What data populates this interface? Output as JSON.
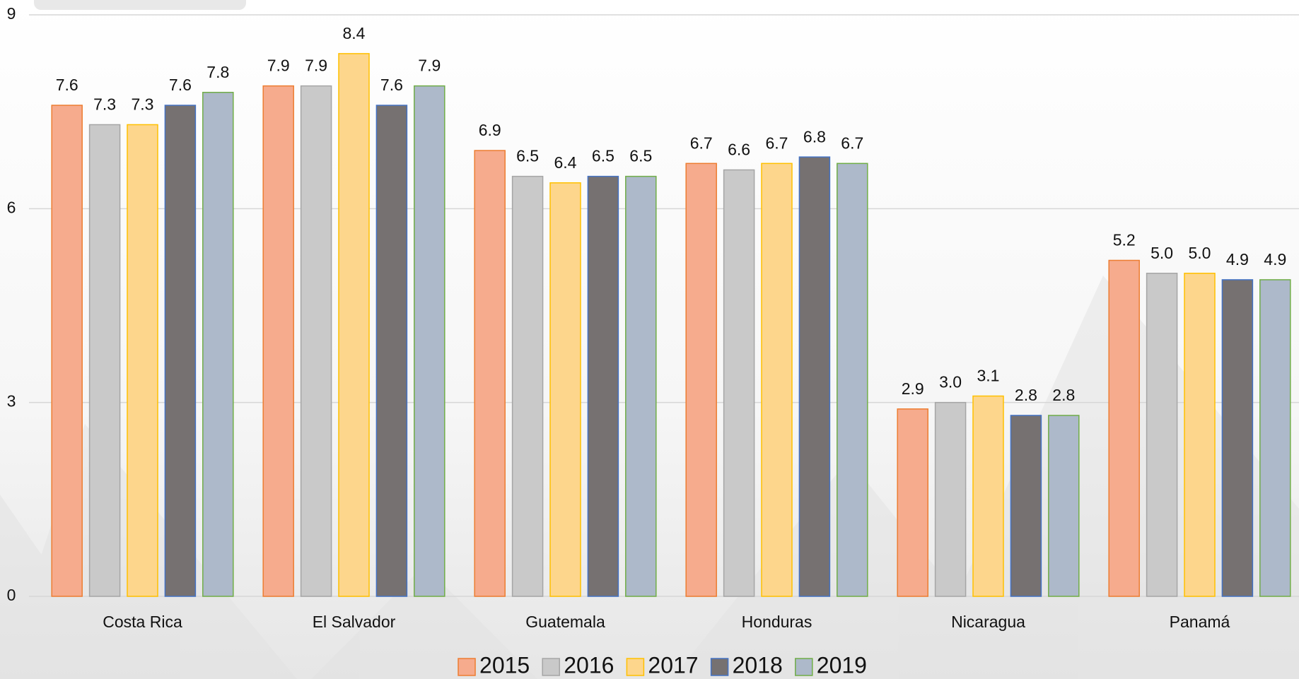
{
  "chart_data": {
    "type": "bar",
    "categories": [
      "Costa Rica",
      "El Salvador",
      "Guatemala",
      "Honduras",
      "Nicaragua",
      "Panamá"
    ],
    "series": [
      {
        "name": "2015",
        "color": "#f6ab8d",
        "edgecolor": "#ed7d31",
        "values": [
          7.6,
          7.9,
          6.9,
          6.7,
          2.9,
          5.2
        ],
        "value_labels": [
          "7.6",
          "7.9",
          "6.9",
          "6.7",
          "2.9",
          "5.2"
        ]
      },
      {
        "name": "2016",
        "color": "#c9c9c9",
        "edgecolor": "#a5a5a5",
        "values": [
          7.3,
          7.9,
          6.5,
          6.6,
          3.0,
          5.0
        ],
        "value_labels": [
          "7.3",
          "7.9",
          "6.5",
          "6.6",
          "3.0",
          "5.0"
        ]
      },
      {
        "name": "2017",
        "color": "#fdd68c",
        "edgecolor": "#ffc000",
        "values": [
          7.3,
          8.4,
          6.4,
          6.7,
          3.1,
          5.0
        ],
        "value_labels": [
          "7.3",
          "8.4",
          "6.4",
          "6.7",
          "3.1",
          "5.0"
        ]
      },
      {
        "name": "2018",
        "color": "#767171",
        "edgecolor": "#4472c4",
        "values": [
          7.6,
          7.6,
          6.5,
          6.8,
          2.8,
          4.9
        ],
        "value_labels": [
          "7.6",
          "7.6",
          "6.5",
          "6.8",
          "2.8",
          "4.9"
        ]
      },
      {
        "name": "2019",
        "color": "#adb9ca",
        "edgecolor": "#70ad47",
        "values": [
          7.8,
          7.9,
          6.5,
          6.7,
          2.8,
          4.9
        ],
        "value_labels": [
          "7.8",
          "7.9",
          "6.5",
          "6.7",
          "2.8",
          "4.9"
        ]
      }
    ],
    "ylim": [
      0,
      9
    ],
    "yticks": [
      0,
      3,
      6,
      9
    ],
    "grid": true,
    "legend": "bottom"
  }
}
